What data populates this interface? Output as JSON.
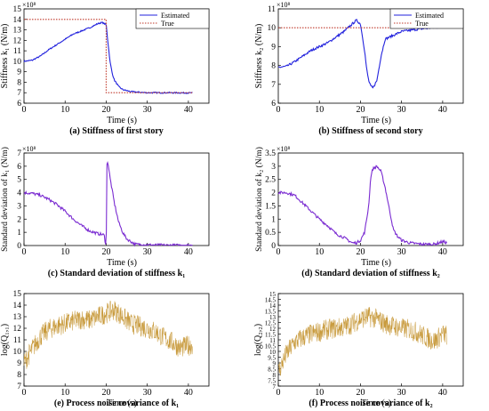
{
  "chart_data": [
    {
      "type": "line",
      "title": "(a) Stiffness of first story",
      "xlabel": "Time",
      "xunit": "(s)",
      "ylabel": "Stiffness k₁ (N/m)",
      "yexp": "×10⁸",
      "xlim": [
        0,
        45
      ],
      "ylim": [
        6,
        15
      ],
      "xticks": [
        "0",
        "10",
        "20",
        "30",
        "40"
      ],
      "yticks": [
        "6",
        "7",
        "8",
        "9",
        "10",
        "11",
        "12",
        "13",
        "14",
        "15"
      ],
      "legend": {
        "position": "top-right",
        "entries": [
          "Estimated",
          "True"
        ]
      },
      "series": [
        {
          "name": "Estimated",
          "color": "#2222dd",
          "style": "solid",
          "x": [
            0,
            2,
            4,
            6,
            8,
            10,
            12,
            14,
            16,
            18,
            19,
            20,
            20.5,
            21,
            21.5,
            22,
            23,
            24,
            26,
            28,
            30,
            35,
            41
          ],
          "y": [
            10,
            10.1,
            10.5,
            11.1,
            11.6,
            12.1,
            12.6,
            12.9,
            13.2,
            13.6,
            13.7,
            13.5,
            11.5,
            9.8,
            8.8,
            8.2,
            7.6,
            7.3,
            7.1,
            7.05,
            7.0,
            7.0,
            6.98
          ]
        },
        {
          "name": "True",
          "color": "#c0392b",
          "style": "dotted",
          "x": [
            0,
            20,
            20,
            41
          ],
          "y": [
            14,
            14,
            7,
            7
          ]
        }
      ]
    },
    {
      "type": "line",
      "title": "(b) Stiffness of second story",
      "xlabel": "Time",
      "xunit": "(s)",
      "ylabel": "Stiffness k₂ (N/m)",
      "yexp": "×10⁸",
      "xlim": [
        0,
        45
      ],
      "ylim": [
        6,
        11
      ],
      "xticks": [
        "0",
        "10",
        "20",
        "30",
        "40"
      ],
      "yticks": [
        "6",
        "7",
        "8",
        "9",
        "10",
        "11"
      ],
      "legend": {
        "position": "top-right",
        "entries": [
          "Estimated",
          "True"
        ]
      },
      "series": [
        {
          "name": "Estimated",
          "color": "#2222dd",
          "style": "solid",
          "x": [
            0,
            2,
            4,
            6,
            8,
            10,
            12,
            14,
            16,
            18,
            19,
            20,
            21,
            21.5,
            22,
            22.5,
            23,
            24,
            25,
            26,
            27,
            28,
            30,
            35,
            40,
            41
          ],
          "y": [
            7.9,
            7.95,
            8.2,
            8.5,
            8.8,
            9.0,
            9.2,
            9.5,
            9.8,
            10.2,
            10.4,
            10.2,
            8.8,
            7.8,
            7.2,
            6.9,
            6.8,
            7.2,
            8.5,
            9.4,
            9.5,
            9.6,
            9.8,
            9.95,
            10.05,
            10.1
          ]
        },
        {
          "name": "True",
          "color": "#c0392b",
          "style": "dotted",
          "x": [
            0,
            41
          ],
          "y": [
            10,
            10
          ]
        }
      ]
    },
    {
      "type": "line",
      "title": "(c) Standard deviation of  stiffness k₁",
      "xlabel": "Time",
      "xunit": "(s)",
      "ylabel": "Standard deviation of k₁ (N/m)",
      "yexp": "×10⁸",
      "xlim": [
        0,
        45
      ],
      "ylim": [
        0,
        7
      ],
      "xticks": [
        "0",
        "10",
        "20",
        "30",
        "40"
      ],
      "yticks": [
        "0",
        "1",
        "2",
        "3",
        "4",
        "5",
        "6",
        "7"
      ],
      "series": [
        {
          "color": "#7a2bd1",
          "style": "solid",
          "x": [
            0,
            2,
            4,
            6,
            8,
            10,
            12,
            14,
            16,
            18,
            19.5,
            19.8,
            20,
            20.2,
            20.5,
            21,
            22,
            23,
            24,
            25,
            26,
            27,
            30,
            35,
            41
          ],
          "y": [
            4.0,
            3.95,
            3.8,
            3.5,
            3.1,
            2.6,
            2.0,
            1.5,
            1.1,
            0.9,
            0.8,
            0.2,
            0.1,
            6.6,
            6.1,
            5.0,
            3.2,
            1.8,
            1.0,
            0.5,
            0.3,
            0.1,
            0.05,
            0.02,
            0.02
          ]
        }
      ]
    },
    {
      "type": "line",
      "title": "(d) Standard deviation of  stiffness k₂",
      "xlabel": "Time",
      "xunit": "(s)",
      "ylabel": "Standard deviation of k₂ (N/m)",
      "yexp": "×10⁸",
      "xlim": [
        0,
        45
      ],
      "ylim": [
        0,
        3.5
      ],
      "xticks": [
        "0",
        "10",
        "20",
        "30",
        "40"
      ],
      "yticks": [
        "0",
        "0.5",
        "1",
        "1.5",
        "2",
        "2.5",
        "3",
        "3.5"
      ],
      "series": [
        {
          "color": "#7a2bd1",
          "style": "solid",
          "x": [
            0,
            2,
            4,
            6,
            8,
            10,
            12,
            14,
            16,
            17,
            18,
            19,
            20,
            21,
            22,
            22.5,
            23,
            24,
            25,
            26,
            27,
            28,
            29,
            30,
            32,
            35,
            38,
            40,
            41
          ],
          "y": [
            2.0,
            2.0,
            1.9,
            1.6,
            1.3,
            1.0,
            0.75,
            0.45,
            0.3,
            0.2,
            0.1,
            0.1,
            0.2,
            0.5,
            1.5,
            2.6,
            2.9,
            3.0,
            2.8,
            2.2,
            1.4,
            0.6,
            0.35,
            0.2,
            0.1,
            0.05,
            0.05,
            0.15,
            0.1
          ]
        }
      ]
    },
    {
      "type": "line",
      "title": "(e) Process noise covariance of k₁",
      "xlabel": "Time",
      "xunit": "(s)",
      "ylabel": "log(Q₁,₁)",
      "xlim": [
        0,
        45
      ],
      "ylim": [
        7,
        15
      ],
      "xticks": [
        "0",
        "10",
        "20",
        "30",
        "40"
      ],
      "yticks": [
        "7",
        "8",
        "9",
        "10",
        "11",
        "12",
        "13",
        "14",
        "15"
      ],
      "series": [
        {
          "color": "#c89a3c",
          "style": "solid",
          "x": [
            0,
            2,
            4,
            6,
            8,
            10,
            12,
            14,
            16,
            18,
            20,
            22,
            24,
            26,
            28,
            30,
            32,
            34,
            36,
            38,
            40,
            41
          ],
          "y": [
            9.0,
            10.2,
            11.3,
            11.9,
            12.2,
            12.4,
            12.6,
            12.8,
            12.7,
            13.0,
            13.3,
            13.6,
            13.0,
            12.4,
            12.2,
            12.0,
            11.7,
            11.2,
            10.8,
            10.3,
            10.5,
            10.6
          ]
        }
      ]
    },
    {
      "type": "line",
      "title": "(f) Process noise covariance of k₂",
      "xlabel": "Time",
      "xunit": "(s)",
      "ylabel": "log(Q₂,₂)",
      "xlim": [
        0,
        45
      ],
      "ylim": [
        7,
        15
      ],
      "xticks": [
        "0",
        "10",
        "20",
        "30",
        "40"
      ],
      "yticks": [
        "7",
        "7.5",
        "8",
        "8.5",
        "9",
        "9.5",
        "10",
        "10.5",
        "11",
        "11.5",
        "12",
        "12.5",
        "13",
        "13.5",
        "14",
        "14.5",
        "15"
      ],
      "series": [
        {
          "color": "#c89a3c",
          "style": "solid",
          "x": [
            0,
            2,
            4,
            6,
            8,
            10,
            12,
            14,
            16,
            18,
            20,
            22,
            24,
            26,
            28,
            30,
            32,
            34,
            36,
            38,
            40,
            41
          ],
          "y": [
            8.2,
            9.8,
            10.8,
            11.2,
            11.5,
            11.7,
            11.9,
            12.0,
            12.1,
            12.4,
            12.8,
            13.0,
            12.8,
            12.4,
            12.2,
            12.0,
            11.9,
            11.6,
            11.2,
            10.9,
            11.5,
            11.4
          ]
        }
      ]
    }
  ]
}
